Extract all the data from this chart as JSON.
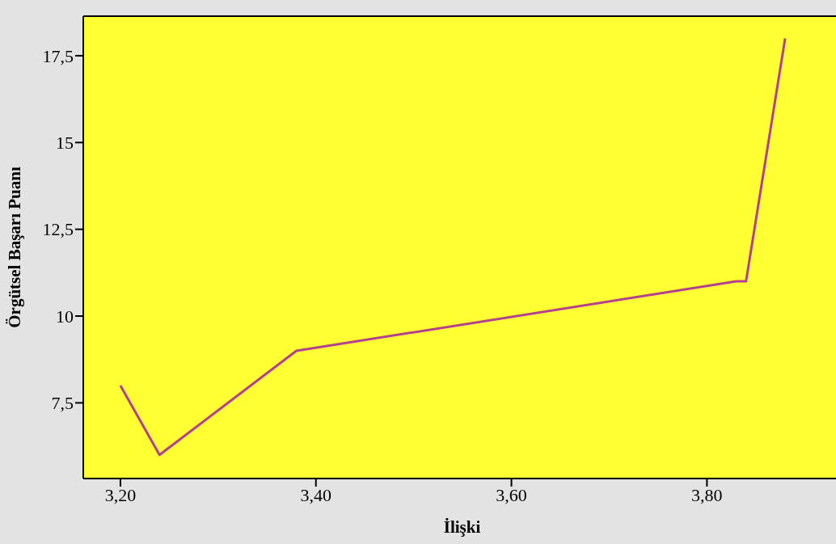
{
  "chart_data": {
    "type": "line",
    "xlabel": "İlişki",
    "ylabel": "Örgütsel Başarı Puanı",
    "x": [
      3.2,
      3.24,
      3.38,
      3.83,
      3.84,
      3.88
    ],
    "series": [
      {
        "color": "#b5418e",
        "values": [
          8,
          6,
          9,
          11,
          11,
          18
        ]
      }
    ],
    "xlim": [
      3.162,
      3.937
    ],
    "ylim": [
      5.32,
      18.64
    ],
    "xticks": [
      {
        "value": 3.2,
        "label": "3,20"
      },
      {
        "value": 3.4,
        "label": "3,40"
      },
      {
        "value": 3.6,
        "label": "3,60"
      },
      {
        "value": 3.8,
        "label": "3,80"
      }
    ],
    "yticks": [
      {
        "value": 7.5,
        "label": "7,5"
      },
      {
        "value": 10,
        "label": "10"
      },
      {
        "value": 12.5,
        "label": "12,5"
      },
      {
        "value": 15,
        "label": "15"
      },
      {
        "value": 17.5,
        "label": "17,5"
      }
    ],
    "grid": false,
    "marker": "none",
    "line_style": "solid"
  }
}
